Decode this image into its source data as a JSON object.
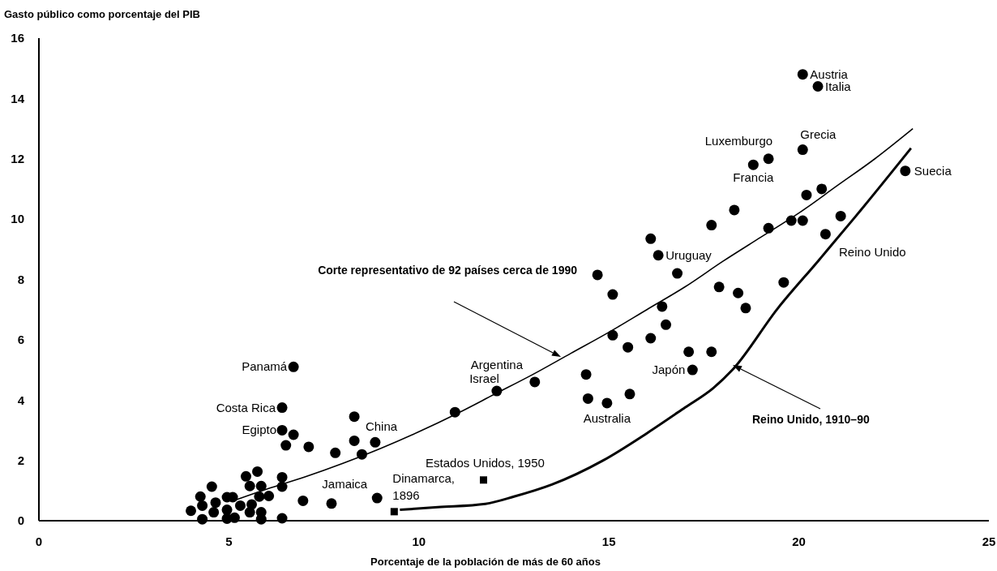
{
  "chart_data": {
    "type": "scatter",
    "ylabel": "Gasto público como porcentaje del PIB",
    "xlabel": "Porcentaje de la población de más de 60 años",
    "xlim": [
      0,
      25
    ],
    "ylim": [
      0,
      16
    ],
    "xticks": [
      0,
      5,
      10,
      15,
      20,
      25
    ],
    "yticks": [
      0,
      2,
      4,
      6,
      8,
      10,
      12,
      14,
      16
    ],
    "grid": false,
    "series": [
      {
        "type": "scatter",
        "marker": "circle",
        "color": "#000000",
        "x": [
          20.1,
          20.5,
          20.1,
          19.2,
          18.8,
          22.8,
          20.6,
          20.2,
          18.3,
          17.7,
          21.1,
          20.1,
          19.8,
          19.2,
          20.7,
          16.1,
          16.3,
          14.7,
          16.8,
          19.6,
          15.1,
          17.9,
          18.4,
          18.6,
          16.4,
          16.5,
          15.1,
          15.5,
          16.1,
          17.1,
          17.7,
          17.2,
          14.4,
          14.45,
          14.95,
          15.55,
          12.05,
          13.05,
          10.95,
          6.7,
          6.4,
          6.4,
          6.7,
          8.3,
          6.5,
          7.1,
          7.8,
          8.3,
          8.85,
          8.5,
          4.55,
          4.25,
          4.0,
          4.3,
          4.3,
          4.65,
          4.6,
          4.95,
          4.95,
          4.95,
          5.15,
          5.1,
          5.3,
          5.45,
          5.55,
          5.75,
          5.85,
          5.8,
          6.05,
          5.6,
          5.55,
          5.85,
          5.85,
          6.4,
          6.4,
          6.4,
          6.95,
          7.7,
          8.9
        ],
        "values": [
          14.8,
          14.4,
          12.3,
          12.0,
          11.8,
          11.6,
          11.0,
          10.8,
          10.3,
          9.8,
          10.1,
          9.95,
          9.95,
          9.7,
          9.5,
          9.35,
          8.8,
          8.15,
          8.2,
          7.9,
          7.5,
          7.75,
          7.55,
          7.05,
          7.1,
          6.5,
          6.15,
          5.75,
          6.05,
          5.6,
          5.6,
          5.0,
          4.85,
          4.05,
          3.9,
          4.2,
          4.3,
          4.6,
          3.6,
          5.1,
          3.75,
          3.0,
          2.85,
          3.45,
          2.5,
          2.45,
          2.25,
          2.65,
          2.6,
          2.2,
          1.13,
          0.8,
          0.33,
          0.5,
          0.05,
          0.6,
          0.28,
          0.78,
          0.36,
          0.07,
          0.1,
          0.78,
          0.5,
          1.47,
          1.15,
          1.63,
          1.15,
          0.8,
          0.82,
          0.54,
          0.28,
          0.28,
          0.05,
          1.44,
          1.13,
          0.08,
          0.66,
          0.57,
          0.75
        ]
      },
      {
        "type": "scatter",
        "marker": "square",
        "color": "#000000",
        "x": [
          11.7,
          9.35
        ],
        "values": [
          1.35,
          0.3
        ]
      },
      {
        "type": "line",
        "color": "#000000",
        "x": [
          5.2,
          6,
          7,
          8,
          9,
          10,
          11,
          12,
          13,
          14,
          15,
          16,
          17,
          18,
          19,
          20,
          21,
          22,
          23
        ],
        "values": [
          0.7,
          1.05,
          1.45,
          1.9,
          2.4,
          2.95,
          3.55,
          4.2,
          4.85,
          5.55,
          6.25,
          7.0,
          7.75,
          8.6,
          9.4,
          10.2,
          11.1,
          12.0,
          13.0
        ]
      },
      {
        "type": "line",
        "color": "#000000",
        "x": [
          9.5,
          10.5,
          11.75,
          12.5,
          13.5,
          14.85,
          16,
          17,
          17.75,
          18.25,
          19.45,
          20.5,
          21.5,
          22.95
        ],
        "values": [
          0.36,
          0.45,
          0.56,
          0.8,
          1.2,
          2.0,
          2.9,
          3.75,
          4.4,
          5.0,
          7.05,
          8.6,
          10.1,
          12.35
        ]
      }
    ],
    "annotations": [
      {
        "text": "Austria",
        "x": 20.1,
        "y": 14.8
      },
      {
        "text": "Italia",
        "x": 20.5,
        "y": 14.4
      },
      {
        "text": "Grecia",
        "x": 20.1,
        "y": 12.3
      },
      {
        "text": "Luxemburgo",
        "x": 19.2,
        "y": 12.0
      },
      {
        "text": "Francia",
        "x": 18.8,
        "y": 11.8
      },
      {
        "text": "Suecia",
        "x": 22.8,
        "y": 11.6
      },
      {
        "text": "Uruguay",
        "x": 16.3,
        "y": 8.8
      },
      {
        "text": "Reino Unido",
        "x": 20.5,
        "y": 8.6
      },
      {
        "text": "Japón",
        "x": 17.2,
        "y": 5.0
      },
      {
        "text": "Australia",
        "x": 14.95,
        "y": 3.9
      },
      {
        "text": "Argentina",
        "x": 12.05,
        "y": 4.3
      },
      {
        "text": "Israel",
        "x": 12.05,
        "y": 4.3
      },
      {
        "text": "China",
        "x": 8.85,
        "y": 2.6
      },
      {
        "text": "Egipto",
        "x": 6.4,
        "y": 3.0
      },
      {
        "text": "Costa Rica",
        "x": 6.4,
        "y": 3.75
      },
      {
        "text": "Panamá",
        "x": 6.7,
        "y": 5.1
      },
      {
        "text": "Jamaica",
        "x": 8.9,
        "y": 0.75
      },
      {
        "text": "Estados Unidos, 1950",
        "x": 11.7,
        "y": 1.35
      },
      {
        "text": "Dinamarca, 1896",
        "x": 9.35,
        "y": 0.3
      },
      "Corte representativo de 92 países cerca de 1990",
      "Reino Unido, 1910–90"
    ]
  }
}
